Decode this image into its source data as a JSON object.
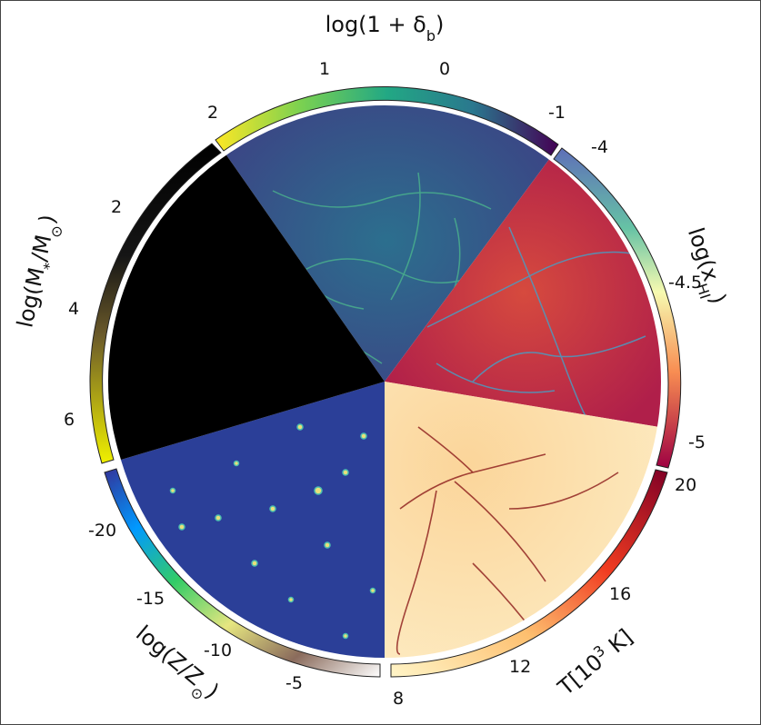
{
  "figure": {
    "sectors": [
      {
        "id": "density",
        "title": "log(1 + δ",
        "title_sub": "b",
        "title_close": ")",
        "colormap": "viridis",
        "ticks": [
          "2",
          "1",
          "0",
          "-1"
        ]
      },
      {
        "id": "neutral-fraction",
        "title": "log(x",
        "title_sub": "HI",
        "title_close": ")",
        "colormap": "spectral-blue-red",
        "ticks": [
          "-4",
          "-4.5",
          "-5"
        ]
      },
      {
        "id": "temperature",
        "title": "T[10",
        "title_sup": "3",
        "title_close": " K]",
        "colormap": "ylorrd",
        "ticks": [
          "20",
          "16",
          "12",
          "8"
        ]
      },
      {
        "id": "metallicity",
        "title": "log(Z/Z",
        "title_sub": "⊙",
        "title_close": ")",
        "colormap": "terrain",
        "ticks": [
          "-20",
          "-15",
          "-10",
          "-5"
        ]
      },
      {
        "id": "stellar-mass",
        "title": "log(M",
        "title_sub": "*",
        "title_mid": "/M",
        "title_sub2": "⊙",
        "title_close": ")",
        "colormap": "inferno-like",
        "ticks": [
          "2",
          "4",
          "6"
        ]
      }
    ],
    "colors": {
      "density_panel": "#3b4f8a",
      "neutral_panel": "#c0304a",
      "temperature_panel": "#fce2b0",
      "metallicity_panel": "#2b3f98",
      "stellar_panel": "#000000"
    }
  }
}
